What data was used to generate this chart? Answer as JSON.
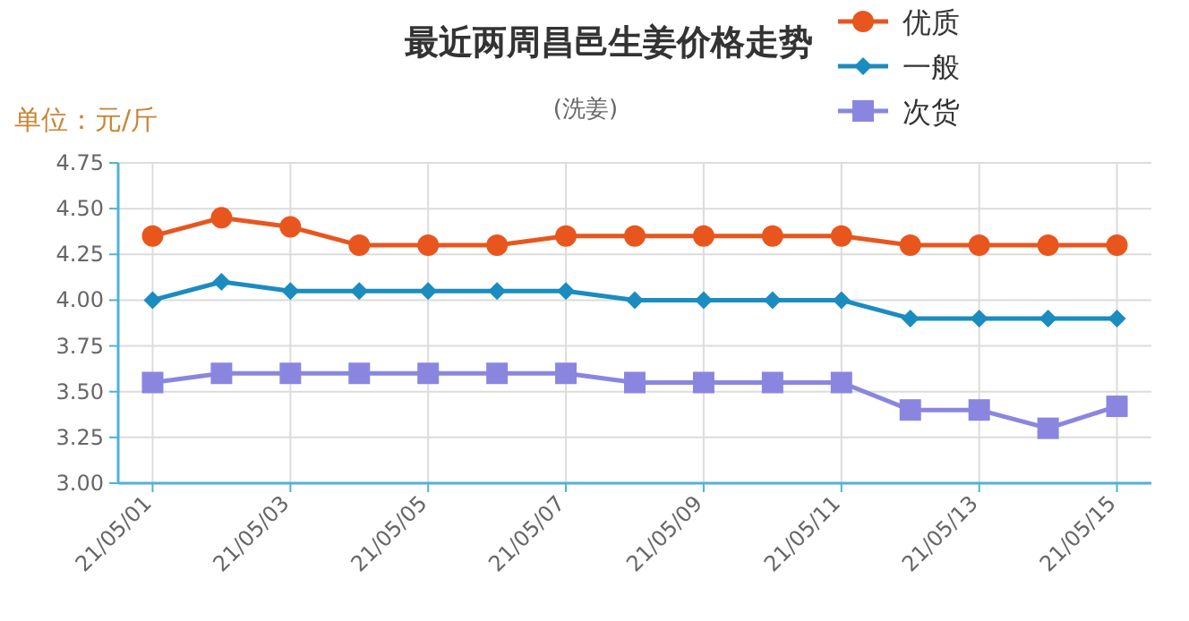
{
  "chart_data": {
    "type": "line",
    "title": "最近两周昌邑生姜价格走势",
    "subtitle": "(洗姜)",
    "ylabel": "单位：元/斤",
    "categories": [
      "21/05/01",
      null,
      "21/05/03",
      null,
      "21/05/05",
      null,
      "21/05/07",
      null,
      "21/05/09",
      null,
      "21/05/11",
      null,
      "21/05/13",
      null,
      "21/05/15"
    ],
    "series": [
      {
        "name": "优质",
        "color": "#e8561e",
        "marker": "circle",
        "values": [
          4.35,
          4.45,
          4.4,
          4.3,
          4.3,
          4.3,
          4.35,
          4.35,
          4.35,
          4.35,
          4.35,
          4.3,
          4.3,
          4.3,
          4.3
        ]
      },
      {
        "name": "一般",
        "color": "#1a8cc0",
        "marker": "diamond",
        "values": [
          4.0,
          4.1,
          4.05,
          4.05,
          4.05,
          4.05,
          4.05,
          4.0,
          4.0,
          4.0,
          4.0,
          3.9,
          3.9,
          3.9,
          3.9
        ]
      },
      {
        "name": "次货",
        "color": "#8a86e0",
        "marker": "square",
        "values": [
          3.55,
          3.6,
          3.6,
          3.6,
          3.6,
          3.6,
          3.6,
          3.55,
          3.55,
          3.55,
          3.55,
          3.4,
          3.4,
          3.3,
          3.42
        ]
      }
    ],
    "ylim": [
      3.0,
      4.75
    ],
    "yticks": [
      {
        "value": 3,
        "label": "3.00"
      },
      {
        "value": 3.25,
        "label": "3.25"
      },
      {
        "value": 3.5,
        "label": "3.50"
      },
      {
        "value": 3.75,
        "label": "3.75"
      },
      {
        "value": 4,
        "label": "4.00"
      },
      {
        "value": 4.25,
        "label": "4.25"
      },
      {
        "value": 4.5,
        "label": "4.50"
      },
      {
        "value": 4.75,
        "label": "4.75"
      }
    ],
    "grid": true,
    "legend": "top right",
    "line_style": "solid"
  }
}
